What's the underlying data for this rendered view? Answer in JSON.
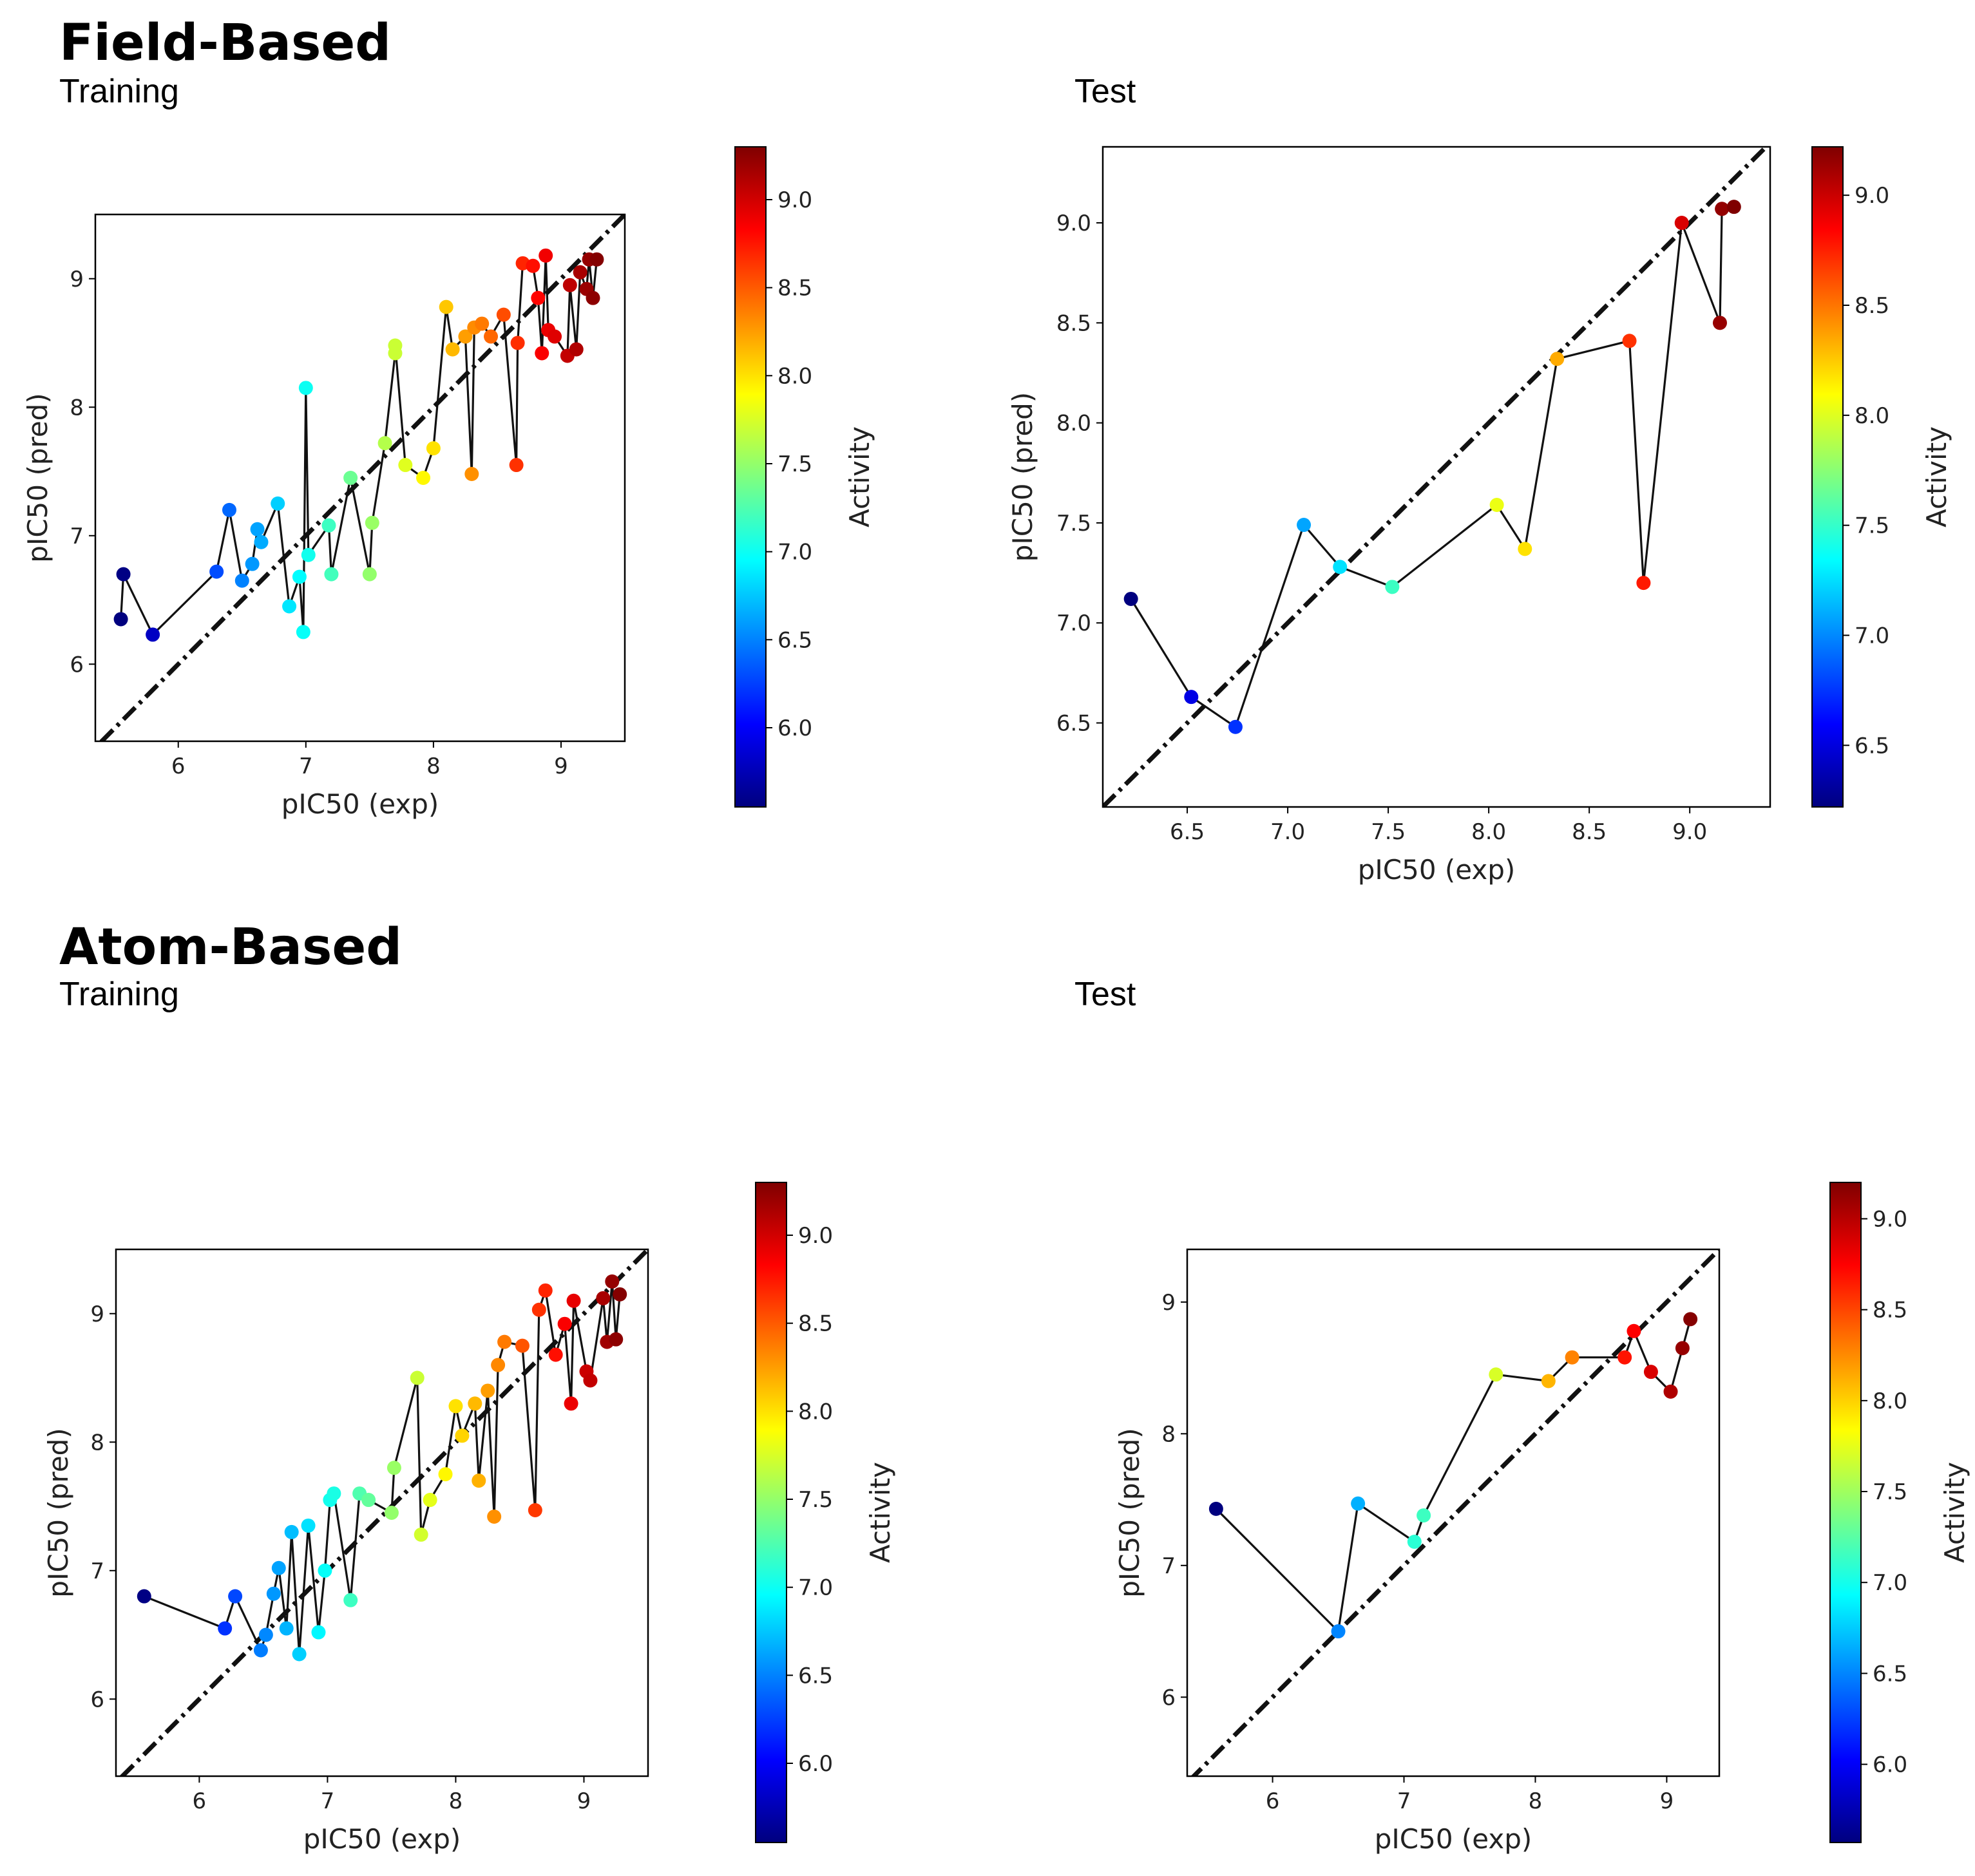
{
  "sections": {
    "field": {
      "title": "Field-Based",
      "training_label": "Training",
      "test_label": "Test"
    },
    "atom": {
      "title": "Atom-Based",
      "training_label": "Training",
      "test_label": "Test"
    }
  },
  "colorbar_label": "Activity",
  "colormap": [
    "#00007f",
    "#0000ff",
    "#007fff",
    "#00ffff",
    "#7fff7f",
    "#ffff00",
    "#ff7f00",
    "#ff0000",
    "#7f0000"
  ],
  "chart_data": [
    {
      "id": "field-training",
      "type": "scatter",
      "title": "Training",
      "xlabel": "pIC50 (exp)",
      "ylabel": "pIC50 (pred)",
      "xlim": [
        5.35,
        9.5
      ],
      "ylim": [
        5.4,
        9.5
      ],
      "xticks": [
        6,
        7,
        8,
        9
      ],
      "yticks": [
        6,
        7,
        8,
        9
      ],
      "cbar_range": [
        5.55,
        9.3
      ],
      "cbar_ticks": [
        6.0,
        6.5,
        7.0,
        7.5,
        8.0,
        8.5,
        9.0
      ],
      "cbar_tick_labels": [
        "6.0",
        "6.5",
        "7.0",
        "7.5",
        "8.0",
        "8.5",
        "9.0"
      ],
      "x": [
        5.55,
        5.57,
        5.8,
        6.3,
        6.4,
        6.5,
        6.58,
        6.62,
        6.65,
        6.78,
        6.87,
        6.95,
        6.98,
        7.0,
        7.02,
        7.18,
        7.2,
        7.35,
        7.5,
        7.52,
        7.62,
        7.7,
        7.7,
        7.78,
        7.92,
        8.0,
        8.1,
        8.15,
        8.25,
        8.3,
        8.32,
        8.38,
        8.45,
        8.55,
        8.65,
        8.66,
        8.7,
        8.78,
        8.82,
        8.85,
        8.88,
        8.9,
        8.95,
        9.05,
        9.07,
        9.12,
        9.15,
        9.2,
        9.22,
        9.25,
        9.28
      ],
      "y": [
        6.35,
        6.7,
        6.23,
        6.72,
        7.2,
        6.65,
        6.78,
        7.05,
        6.95,
        7.25,
        6.45,
        6.68,
        6.25,
        8.15,
        6.85,
        7.08,
        6.7,
        7.45,
        6.7,
        7.1,
        7.72,
        8.42,
        8.48,
        7.55,
        7.45,
        7.68,
        8.78,
        8.45,
        8.55,
        7.48,
        8.62,
        8.65,
        8.55,
        8.72,
        7.55,
        8.5,
        9.12,
        9.1,
        8.85,
        8.42,
        9.18,
        8.6,
        8.55,
        8.4,
        8.95,
        8.45,
        9.05,
        8.92,
        9.15,
        8.85,
        9.15
      ],
      "c": [
        5.55,
        5.57,
        5.8,
        6.3,
        6.4,
        6.5,
        6.58,
        6.62,
        6.65,
        6.78,
        6.87,
        6.95,
        6.98,
        7.0,
        7.02,
        7.18,
        7.2,
        7.35,
        7.5,
        7.52,
        7.62,
        7.7,
        7.7,
        7.78,
        7.92,
        8.0,
        8.1,
        8.15,
        8.25,
        8.3,
        8.32,
        8.38,
        8.45,
        8.55,
        8.65,
        8.66,
        8.7,
        8.78,
        8.82,
        8.85,
        8.88,
        8.9,
        8.95,
        9.05,
        9.07,
        9.12,
        9.15,
        9.2,
        9.22,
        9.25,
        9.28
      ],
      "colorbar_label": "Activity"
    },
    {
      "id": "field-test",
      "type": "scatter",
      "title": "Test",
      "xlabel": "pIC50 (exp)",
      "ylabel": "pIC50 (pred)",
      "xlim": [
        6.08,
        9.4
      ],
      "ylim": [
        6.08,
        9.38
      ],
      "xticks": [
        6.5,
        7.0,
        7.5,
        8.0,
        8.5,
        9.0
      ],
      "yticks": [
        6.5,
        7.0,
        7.5,
        8.0,
        8.5,
        9.0
      ],
      "xtick_labels": [
        "6.5",
        "7.0",
        "7.5",
        "8.0",
        "8.5",
        "9.0"
      ],
      "ytick_labels": [
        "6.5",
        "7.0",
        "7.5",
        "8.0",
        "8.5",
        "9.0"
      ],
      "cbar_range": [
        6.22,
        9.22
      ],
      "cbar_ticks": [
        6.5,
        7.0,
        7.5,
        8.0,
        8.5,
        9.0
      ],
      "cbar_tick_labels": [
        "6.5",
        "7.0",
        "7.5",
        "8.0",
        "8.5",
        "9.0"
      ],
      "x": [
        6.22,
        6.52,
        6.74,
        7.08,
        7.26,
        7.52,
        8.04,
        8.18,
        8.34,
        8.7,
        8.77,
        8.96,
        9.15,
        9.16,
        9.22
      ],
      "y": [
        7.12,
        6.63,
        6.48,
        7.49,
        7.28,
        7.18,
        7.59,
        7.37,
        8.32,
        8.41,
        7.2,
        9.0,
        8.5,
        9.07,
        9.08
      ],
      "c": [
        6.22,
        6.52,
        6.74,
        7.08,
        7.26,
        7.52,
        8.04,
        8.18,
        8.34,
        8.7,
        8.77,
        8.96,
        9.15,
        9.16,
        9.22
      ],
      "colorbar_label": "Activity"
    },
    {
      "id": "atom-training",
      "type": "scatter",
      "title": "Training",
      "xlabel": "pIC50 (exp)",
      "ylabel": "pIC50 (pred)",
      "xlim": [
        5.35,
        9.5
      ],
      "ylim": [
        5.4,
        9.5
      ],
      "xticks": [
        6,
        7,
        8,
        9
      ],
      "yticks": [
        6,
        7,
        8,
        9
      ],
      "cbar_range": [
        5.55,
        9.3
      ],
      "cbar_ticks": [
        6.0,
        6.5,
        7.0,
        7.5,
        8.0,
        8.5,
        9.0
      ],
      "cbar_tick_labels": [
        "6.0",
        "6.5",
        "7.0",
        "7.5",
        "8.0",
        "8.5",
        "9.0"
      ],
      "x": [
        5.57,
        6.2,
        6.28,
        6.48,
        6.52,
        6.58,
        6.62,
        6.68,
        6.72,
        6.78,
        6.85,
        6.93,
        6.98,
        7.02,
        7.05,
        7.18,
        7.25,
        7.32,
        7.5,
        7.52,
        7.7,
        7.73,
        7.8,
        7.92,
        8.0,
        8.05,
        8.15,
        8.18,
        8.25,
        8.3,
        8.33,
        8.38,
        8.52,
        8.62,
        8.65,
        8.7,
        8.78,
        8.85,
        8.9,
        8.92,
        9.02,
        9.05,
        9.15,
        9.18,
        9.22,
        9.25,
        9.28
      ],
      "y": [
        6.8,
        6.55,
        6.8,
        6.38,
        6.5,
        6.82,
        7.02,
        6.55,
        7.3,
        6.35,
        7.35,
        6.52,
        7.0,
        7.55,
        7.6,
        6.77,
        7.6,
        7.55,
        7.45,
        7.8,
        8.5,
        7.28,
        7.55,
        7.75,
        8.28,
        8.05,
        8.3,
        7.7,
        8.4,
        7.42,
        8.6,
        8.78,
        8.75,
        7.47,
        9.03,
        9.18,
        8.68,
        8.92,
        8.3,
        9.1,
        8.55,
        8.48,
        9.12,
        8.78,
        9.25,
        8.8,
        9.15
      ],
      "c": [
        5.57,
        6.2,
        6.28,
        6.48,
        6.52,
        6.58,
        6.62,
        6.68,
        6.72,
        6.78,
        6.85,
        6.93,
        6.98,
        7.02,
        7.05,
        7.18,
        7.25,
        7.32,
        7.5,
        7.52,
        7.7,
        7.73,
        7.8,
        7.92,
        8.0,
        8.05,
        8.15,
        8.18,
        8.25,
        8.3,
        8.33,
        8.38,
        8.52,
        8.62,
        8.65,
        8.7,
        8.78,
        8.85,
        8.9,
        8.92,
        9.02,
        9.05,
        9.15,
        9.18,
        9.22,
        9.25,
        9.28
      ],
      "colorbar_label": "Activity"
    },
    {
      "id": "atom-test",
      "type": "scatter",
      "title": "Test",
      "xlabel": "pIC50 (exp)",
      "ylabel": "pIC50 (pred)",
      "xlim": [
        5.35,
        9.4
      ],
      "ylim": [
        5.4,
        9.4
      ],
      "xticks": [
        6,
        7,
        8,
        9
      ],
      "yticks": [
        6,
        7,
        8,
        9
      ],
      "cbar_range": [
        5.57,
        9.2
      ],
      "cbar_ticks": [
        6.0,
        6.5,
        7.0,
        7.5,
        8.0,
        8.5,
        9.0
      ],
      "cbar_tick_labels": [
        "6.0",
        "6.5",
        "7.0",
        "7.5",
        "8.0",
        "8.5",
        "9.0"
      ],
      "x": [
        5.57,
        6.5,
        6.65,
        7.08,
        7.15,
        7.7,
        8.1,
        8.28,
        8.68,
        8.75,
        8.88,
        9.03,
        9.12,
        9.18
      ],
      "y": [
        7.43,
        6.5,
        7.47,
        7.18,
        7.38,
        8.45,
        8.4,
        8.58,
        8.58,
        8.78,
        8.47,
        8.32,
        8.65,
        8.87
      ],
      "c": [
        5.57,
        6.5,
        6.65,
        7.08,
        7.15,
        7.7,
        8.1,
        8.28,
        8.68,
        8.75,
        8.88,
        9.03,
        9.12,
        9.18
      ],
      "colorbar_label": "Activity"
    }
  ]
}
